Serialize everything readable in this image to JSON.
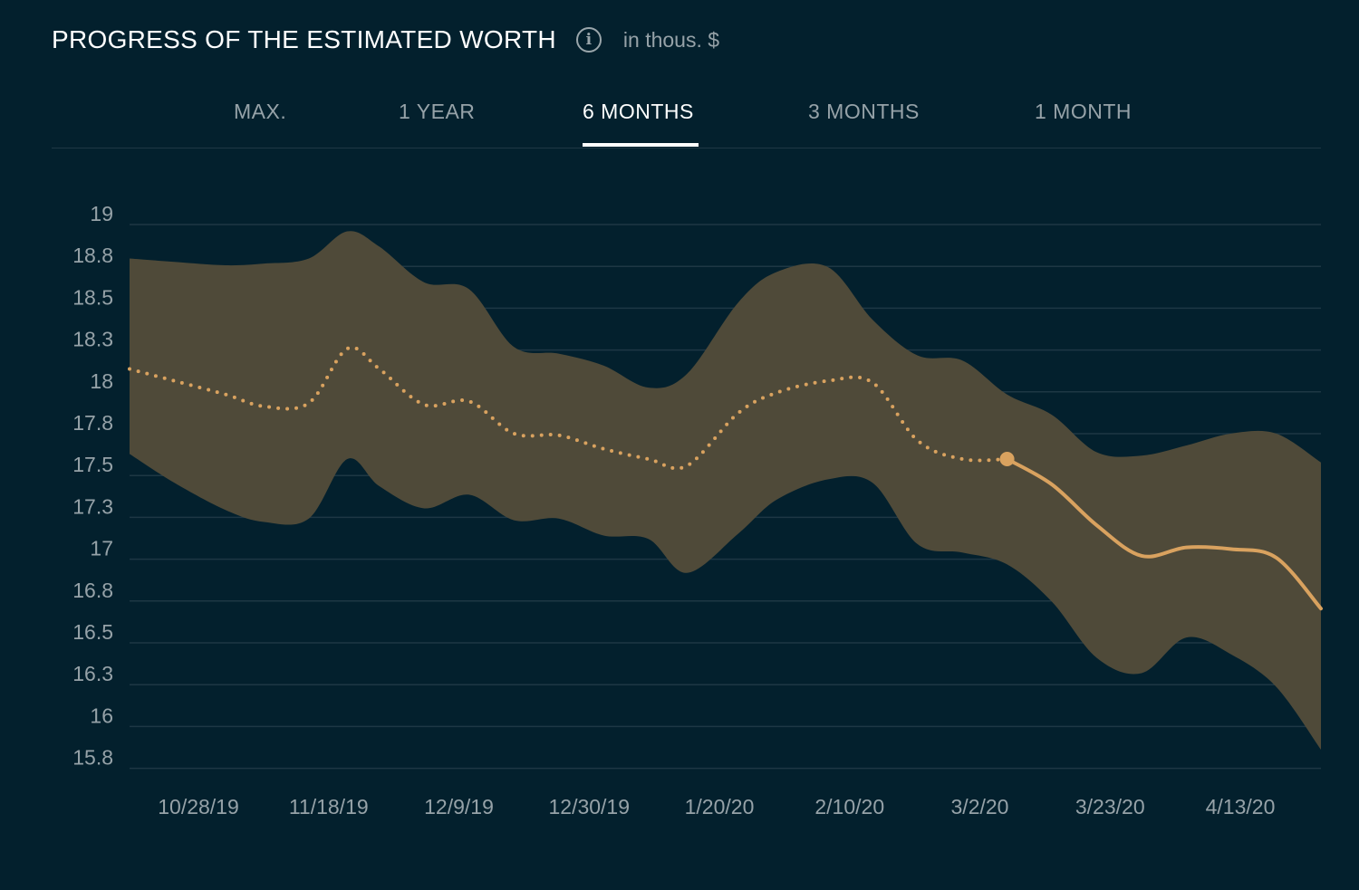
{
  "header": {
    "title": "PROGRESS OF THE ESTIMATED WORTH",
    "info_icon": "info-circle-icon",
    "unit": "in thous. $"
  },
  "tabs": [
    {
      "label": "MAX.",
      "active": false
    },
    {
      "label": "1 YEAR",
      "active": false
    },
    {
      "label": "6 MONTHS",
      "active": true
    },
    {
      "label": "3 MONTHS",
      "active": false
    },
    {
      "label": "1 MONTH",
      "active": false
    }
  ],
  "colors": {
    "background": "#03202d",
    "band": "#4f4a39",
    "line": "#d9a25f",
    "grid": "#1e3744",
    "text_muted": "#96a2a8"
  },
  "chart_data": {
    "type": "area",
    "y_ticks": [
      "19",
      "18.8",
      "18.5",
      "18.3",
      "18",
      "17.8",
      "17.5",
      "17.3",
      "17",
      "16.8",
      "16.5",
      "16.3",
      "16",
      "15.8"
    ],
    "x_ticks": [
      "10/28/19",
      "11/18/19",
      "12/9/19",
      "12/30/19",
      "1/20/20",
      "2/10/20",
      "3/2/20",
      "3/23/20",
      "4/13/20"
    ],
    "series": [
      {
        "kind": "confidence-band-upper",
        "x": [
          "2019-10-17",
          "2019-10-24",
          "2019-11-01",
          "2019-11-07",
          "2019-11-14",
          "2019-11-20",
          "2019-11-25",
          "2019-12-02",
          "2019-12-09",
          "2019-12-16",
          "2019-12-23",
          "2019-12-30",
          "2020-01-06",
          "2020-01-12",
          "2020-01-20",
          "2020-01-26",
          "2020-02-03",
          "2020-02-10",
          "2020-02-17",
          "2020-02-24",
          "2020-03-02",
          "2020-03-09",
          "2020-03-16",
          "2020-03-23",
          "2020-03-30",
          "2020-04-06",
          "2020-04-13",
          "2020-04-20"
        ],
        "values": [
          18.8,
          18.78,
          18.76,
          18.77,
          18.8,
          18.96,
          18.87,
          18.66,
          18.62,
          18.28,
          18.24,
          18.17,
          18.04,
          18.12,
          18.54,
          18.72,
          18.75,
          18.44,
          18.23,
          18.2,
          18.0,
          17.88,
          17.66,
          17.64,
          17.7,
          17.77,
          17.77,
          17.6
        ]
      },
      {
        "kind": "confidence-band-lower",
        "x": [
          "2019-10-17",
          "2019-10-24",
          "2019-11-01",
          "2019-11-07",
          "2019-11-14",
          "2019-11-20",
          "2019-11-25",
          "2019-12-02",
          "2019-12-09",
          "2019-12-16",
          "2019-12-23",
          "2019-12-30",
          "2020-01-06",
          "2020-01-12",
          "2020-01-20",
          "2020-01-26",
          "2020-02-03",
          "2020-02-10",
          "2020-02-17",
          "2020-02-24",
          "2020-03-02",
          "2020-03-09",
          "2020-03-16",
          "2020-03-23",
          "2020-03-30",
          "2020-04-06",
          "2020-04-13",
          "2020-04-20"
        ],
        "values": [
          17.65,
          17.48,
          17.32,
          17.25,
          17.27,
          17.62,
          17.46,
          17.33,
          17.41,
          17.26,
          17.27,
          17.17,
          17.15,
          16.95,
          17.18,
          17.38,
          17.5,
          17.48,
          17.12,
          17.07,
          17.0,
          16.78,
          16.45,
          16.36,
          16.57,
          16.47,
          16.28,
          15.91
        ]
      },
      {
        "kind": "historical-dotted",
        "x": [
          "2019-10-17",
          "2019-10-24",
          "2019-11-01",
          "2019-11-07",
          "2019-11-14",
          "2019-11-20",
          "2019-11-25",
          "2019-12-02",
          "2019-12-09",
          "2019-12-16",
          "2019-12-23",
          "2019-12-30",
          "2020-01-06",
          "2020-01-12",
          "2020-01-20",
          "2020-01-26",
          "2020-02-03",
          "2020-02-10",
          "2020-02-17",
          "2020-02-24",
          "2020-03-02"
        ],
        "values": [
          18.15,
          18.08,
          18.0,
          17.93,
          17.95,
          18.27,
          18.15,
          17.94,
          17.96,
          17.77,
          17.76,
          17.68,
          17.62,
          17.58,
          17.89,
          18.01,
          18.08,
          18.07,
          17.73,
          17.62,
          17.62
        ]
      },
      {
        "kind": "forecast-solid",
        "x": [
          "2020-03-02",
          "2020-03-09",
          "2020-03-16",
          "2020-03-23",
          "2020-03-30",
          "2020-04-06",
          "2020-04-13",
          "2020-04-20"
        ],
        "values": [
          17.62,
          17.47,
          17.23,
          17.05,
          17.1,
          17.09,
          17.04,
          16.74
        ]
      }
    ],
    "x_range": [
      "2019-10-17",
      "2020-04-20"
    ],
    "grid": true,
    "highlight_point": {
      "x": "2020-03-02",
      "y": 17.62
    }
  }
}
